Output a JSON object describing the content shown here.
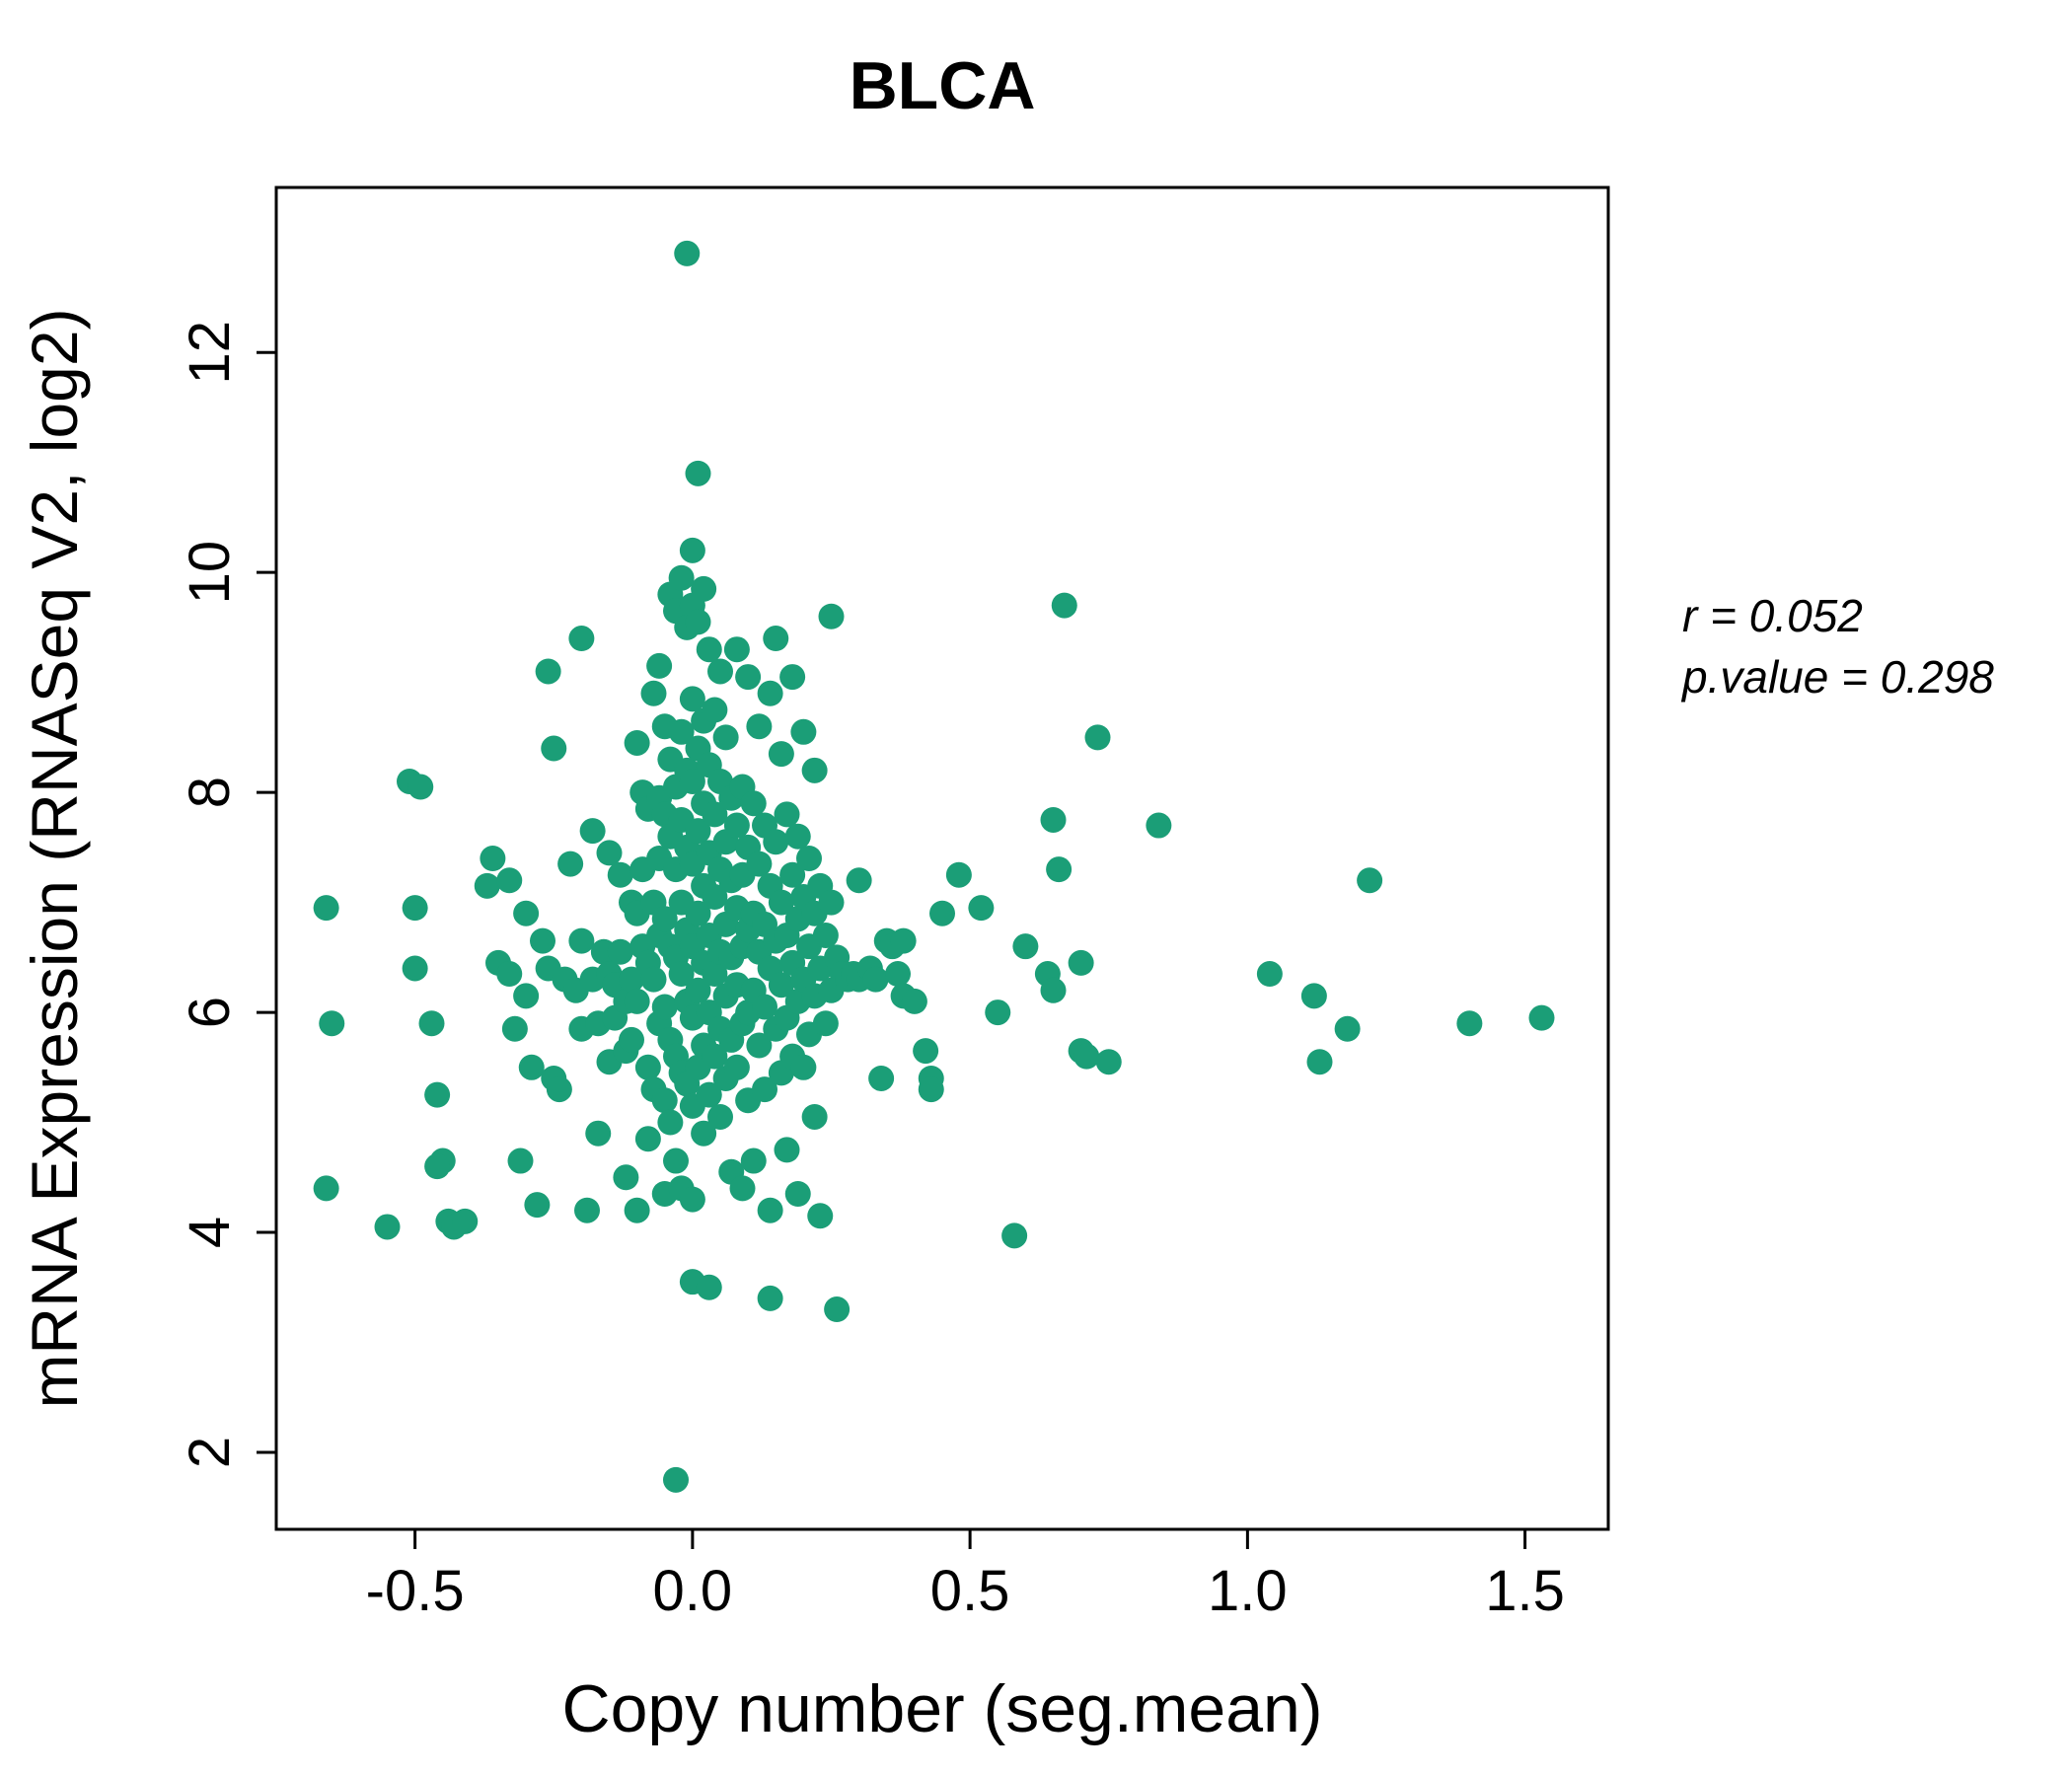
{
  "header": {
    "title": "BLCA"
  },
  "annotation": {
    "line1": "r = 0.052",
    "line2": "p.value = 0.298"
  },
  "colors": {
    "accent": "#1B9E77",
    "axis": "#000000"
  },
  "chart_data": {
    "type": "scatter",
    "title": "BLCA",
    "xlabel": "Copy number (seg.mean)",
    "ylabel": "mRNA Expression (RNASeq V2, log2)",
    "xlim": [
      -0.75,
      1.65
    ],
    "ylim": [
      1.3,
      13.5
    ],
    "x_tick_values": [
      -0.5,
      0.0,
      0.5,
      1.0,
      1.5
    ],
    "x_tick_labels": [
      "-0.5",
      "0.0",
      "0.5",
      "1.0",
      "1.5"
    ],
    "y_tick_values": [
      2,
      4,
      6,
      8,
      10,
      12
    ],
    "y_tick_labels": [
      "2",
      "4",
      "6",
      "8",
      "10",
      "12"
    ],
    "point_color": "#1B9E77",
    "grid": false,
    "legend": "none",
    "annotations": [
      "r = 0.052",
      "p.value = 0.298"
    ],
    "points": [
      [
        -0.66,
        6.95
      ],
      [
        -0.65,
        5.9
      ],
      [
        -0.66,
        4.4
      ],
      [
        -0.55,
        4.05
      ],
      [
        -0.51,
        8.1
      ],
      [
        -0.49,
        8.05
      ],
      [
        -0.5,
        6.95
      ],
      [
        -0.5,
        6.4
      ],
      [
        -0.47,
        5.9
      ],
      [
        -0.46,
        5.25
      ],
      [
        -0.45,
        4.65
      ],
      [
        -0.46,
        4.6
      ],
      [
        -0.44,
        4.1
      ],
      [
        -0.43,
        4.05
      ],
      [
        -0.41,
        4.1
      ],
      [
        -0.36,
        7.4
      ],
      [
        -0.37,
        7.15
      ],
      [
        -0.35,
        6.45
      ],
      [
        -0.33,
        7.2
      ],
      [
        -0.33,
        6.35
      ],
      [
        -0.32,
        5.85
      ],
      [
        -0.31,
        4.65
      ],
      [
        -0.3,
        6.9
      ],
      [
        -0.3,
        6.15
      ],
      [
        -0.29,
        5.5
      ],
      [
        -0.28,
        4.25
      ],
      [
        -0.27,
        6.65
      ],
      [
        -0.26,
        6.4
      ],
      [
        -0.26,
        9.1
      ],
      [
        -0.25,
        8.4
      ],
      [
        -0.25,
        5.4
      ],
      [
        -0.24,
        5.3
      ],
      [
        -0.23,
        6.3
      ],
      [
        -0.22,
        7.35
      ],
      [
        -0.21,
        6.2
      ],
      [
        -0.2,
        9.4
      ],
      [
        -0.2,
        6.65
      ],
      [
        -0.2,
        5.85
      ],
      [
        -0.19,
        4.2
      ],
      [
        -0.18,
        7.65
      ],
      [
        -0.18,
        6.3
      ],
      [
        -0.17,
        5.9
      ],
      [
        -0.17,
        4.9
      ],
      [
        -0.16,
        6.55
      ],
      [
        -0.15,
        7.45
      ],
      [
        -0.15,
        6.35
      ],
      [
        -0.15,
        5.55
      ],
      [
        -0.14,
        6.25
      ],
      [
        -0.14,
        5.95
      ],
      [
        -0.13,
        7.25
      ],
      [
        -0.13,
        6.55
      ],
      [
        -0.12,
        6.1
      ],
      [
        -0.12,
        5.65
      ],
      [
        -0.12,
        4.5
      ],
      [
        -0.11,
        7.0
      ],
      [
        -0.11,
        6.3
      ],
      [
        -0.11,
        5.75
      ],
      [
        -0.1,
        8.45
      ],
      [
        -0.1,
        6.9
      ],
      [
        -0.1,
        6.1
      ],
      [
        -0.1,
        4.2
      ],
      [
        -0.09,
        8.0
      ],
      [
        -0.09,
        7.3
      ],
      [
        -0.09,
        6.6
      ],
      [
        -0.08,
        7.85
      ],
      [
        -0.08,
        6.45
      ],
      [
        -0.08,
        5.5
      ],
      [
        -0.08,
        4.85
      ],
      [
        -0.07,
        8.9
      ],
      [
        -0.07,
        7.0
      ],
      [
        -0.07,
        6.3
      ],
      [
        -0.07,
        5.3
      ],
      [
        -0.06,
        9.15
      ],
      [
        -0.06,
        7.95
      ],
      [
        -0.06,
        7.4
      ],
      [
        -0.06,
        6.7
      ],
      [
        -0.06,
        5.9
      ],
      [
        -0.05,
        8.6
      ],
      [
        -0.05,
        7.8
      ],
      [
        -0.05,
        6.85
      ],
      [
        -0.05,
        6.05
      ],
      [
        -0.05,
        5.2
      ],
      [
        -0.05,
        4.35
      ],
      [
        -0.04,
        9.8
      ],
      [
        -0.04,
        8.3
      ],
      [
        -0.04,
        7.6
      ],
      [
        -0.04,
        6.6
      ],
      [
        -0.04,
        5.75
      ],
      [
        -0.04,
        5.0
      ],
      [
        -0.03,
        9.65
      ],
      [
        -0.03,
        8.05
      ],
      [
        -0.03,
        7.3
      ],
      [
        -0.03,
        6.5
      ],
      [
        -0.03,
        5.6
      ],
      [
        -0.03,
        4.65
      ],
      [
        -0.03,
        1.75
      ],
      [
        -0.02,
        9.95
      ],
      [
        -0.02,
        8.55
      ],
      [
        -0.02,
        7.75
      ],
      [
        -0.02,
        7.0
      ],
      [
        -0.02,
        6.35
      ],
      [
        -0.02,
        5.45
      ],
      [
        -0.02,
        4.4
      ],
      [
        -0.01,
        12.9
      ],
      [
        -0.01,
        9.5
      ],
      [
        -0.01,
        8.2
      ],
      [
        -0.01,
        7.5
      ],
      [
        -0.01,
        6.75
      ],
      [
        -0.01,
        6.1
      ],
      [
        -0.01,
        5.35
      ],
      [
        0.0,
        10.2
      ],
      [
        0.0,
        9.7
      ],
      [
        0.0,
        8.85
      ],
      [
        0.0,
        8.1
      ],
      [
        0.0,
        7.35
      ],
      [
        0.0,
        6.6
      ],
      [
        0.0,
        5.95
      ],
      [
        0.0,
        5.15
      ],
      [
        0.0,
        4.3
      ],
      [
        0.0,
        3.55
      ],
      [
        0.01,
        10.9
      ],
      [
        0.01,
        9.55
      ],
      [
        0.01,
        8.4
      ],
      [
        0.01,
        7.65
      ],
      [
        0.01,
        6.9
      ],
      [
        0.01,
        6.2
      ],
      [
        0.01,
        5.5
      ],
      [
        0.02,
        9.85
      ],
      [
        0.02,
        8.65
      ],
      [
        0.02,
        7.9
      ],
      [
        0.02,
        7.15
      ],
      [
        0.02,
        6.45
      ],
      [
        0.02,
        5.7
      ],
      [
        0.02,
        4.9
      ],
      [
        0.03,
        9.3
      ],
      [
        0.03,
        8.25
      ],
      [
        0.03,
        7.45
      ],
      [
        0.03,
        6.7
      ],
      [
        0.03,
        6.0
      ],
      [
        0.03,
        5.25
      ],
      [
        0.03,
        3.5
      ],
      [
        0.04,
        8.75
      ],
      [
        0.04,
        7.8
      ],
      [
        0.04,
        7.05
      ],
      [
        0.04,
        6.35
      ],
      [
        0.04,
        5.6
      ],
      [
        0.05,
        9.1
      ],
      [
        0.05,
        8.1
      ],
      [
        0.05,
        7.3
      ],
      [
        0.05,
        6.55
      ],
      [
        0.05,
        5.85
      ],
      [
        0.05,
        5.05
      ],
      [
        0.06,
        8.5
      ],
      [
        0.06,
        7.55
      ],
      [
        0.06,
        6.8
      ],
      [
        0.06,
        6.15
      ],
      [
        0.06,
        5.4
      ],
      [
        0.07,
        7.95
      ],
      [
        0.07,
        7.2
      ],
      [
        0.07,
        6.5
      ],
      [
        0.07,
        5.75
      ],
      [
        0.07,
        4.55
      ],
      [
        0.08,
        9.3
      ],
      [
        0.08,
        7.7
      ],
      [
        0.08,
        6.95
      ],
      [
        0.08,
        6.25
      ],
      [
        0.08,
        5.5
      ],
      [
        0.09,
        8.05
      ],
      [
        0.09,
        7.25
      ],
      [
        0.09,
        6.6
      ],
      [
        0.09,
        5.9
      ],
      [
        0.09,
        4.4
      ],
      [
        0.1,
        9.05
      ],
      [
        0.1,
        7.5
      ],
      [
        0.1,
        6.75
      ],
      [
        0.1,
        6.0
      ],
      [
        0.1,
        5.2
      ],
      [
        0.11,
        7.9
      ],
      [
        0.11,
        6.9
      ],
      [
        0.11,
        6.2
      ],
      [
        0.11,
        4.65
      ],
      [
        0.12,
        8.6
      ],
      [
        0.12,
        7.35
      ],
      [
        0.12,
        6.55
      ],
      [
        0.12,
        5.7
      ],
      [
        0.13,
        7.7
      ],
      [
        0.13,
        6.8
      ],
      [
        0.13,
        6.05
      ],
      [
        0.13,
        5.3
      ],
      [
        0.14,
        8.9
      ],
      [
        0.14,
        7.15
      ],
      [
        0.14,
        6.4
      ],
      [
        0.14,
        4.2
      ],
      [
        0.14,
        3.4
      ],
      [
        0.15,
        9.4
      ],
      [
        0.15,
        7.55
      ],
      [
        0.15,
        6.65
      ],
      [
        0.15,
        5.85
      ],
      [
        0.16,
        8.35
      ],
      [
        0.16,
        7.0
      ],
      [
        0.16,
        6.25
      ],
      [
        0.16,
        5.45
      ],
      [
        0.17,
        7.8
      ],
      [
        0.17,
        6.7
      ],
      [
        0.17,
        5.95
      ],
      [
        0.17,
        4.75
      ],
      [
        0.18,
        9.05
      ],
      [
        0.18,
        7.25
      ],
      [
        0.18,
        6.45
      ],
      [
        0.18,
        5.6
      ],
      [
        0.19,
        7.6
      ],
      [
        0.19,
        6.85
      ],
      [
        0.19,
        6.1
      ],
      [
        0.19,
        4.35
      ],
      [
        0.2,
        8.55
      ],
      [
        0.2,
        7.05
      ],
      [
        0.2,
        6.3
      ],
      [
        0.2,
        5.5
      ],
      [
        0.21,
        7.4
      ],
      [
        0.21,
        6.6
      ],
      [
        0.21,
        5.8
      ],
      [
        0.22,
        8.2
      ],
      [
        0.22,
        6.9
      ],
      [
        0.22,
        6.15
      ],
      [
        0.22,
        5.05
      ],
      [
        0.23,
        7.15
      ],
      [
        0.23,
        6.4
      ],
      [
        0.23,
        4.15
      ],
      [
        0.24,
        6.7
      ],
      [
        0.24,
        5.9
      ],
      [
        0.25,
        9.6
      ],
      [
        0.25,
        7.0
      ],
      [
        0.25,
        6.2
      ],
      [
        0.26,
        3.3
      ],
      [
        0.26,
        6.5
      ],
      [
        0.27,
        6.35
      ],
      [
        0.28,
        6.3
      ],
      [
        0.29,
        6.35
      ],
      [
        0.3,
        7.2
      ],
      [
        0.3,
        6.3
      ],
      [
        0.32,
        6.4
      ],
      [
        0.33,
        6.3
      ],
      [
        0.34,
        5.4
      ],
      [
        0.35,
        6.65
      ],
      [
        0.36,
        6.6
      ],
      [
        0.37,
        6.35
      ],
      [
        0.38,
        6.65
      ],
      [
        0.38,
        6.15
      ],
      [
        0.4,
        6.1
      ],
      [
        0.42,
        5.65
      ],
      [
        0.43,
        5.4
      ],
      [
        0.43,
        5.3
      ],
      [
        0.45,
        6.9
      ],
      [
        0.48,
        7.25
      ],
      [
        0.52,
        6.95
      ],
      [
        0.55,
        6.0
      ],
      [
        0.58,
        3.97
      ],
      [
        0.6,
        6.6
      ],
      [
        0.64,
        6.35
      ],
      [
        0.65,
        6.2
      ],
      [
        0.67,
        9.7
      ],
      [
        0.65,
        7.75
      ],
      [
        0.66,
        7.3
      ],
      [
        0.7,
        6.45
      ],
      [
        0.7,
        5.65
      ],
      [
        0.71,
        5.6
      ],
      [
        0.73,
        8.5
      ],
      [
        0.75,
        5.55
      ],
      [
        0.84,
        7.7
      ],
      [
        1.04,
        6.35
      ],
      [
        1.12,
        6.15
      ],
      [
        1.13,
        5.55
      ],
      [
        1.18,
        5.85
      ],
      [
        1.22,
        7.2
      ],
      [
        1.4,
        5.9
      ],
      [
        1.53,
        5.95
      ]
    ]
  }
}
